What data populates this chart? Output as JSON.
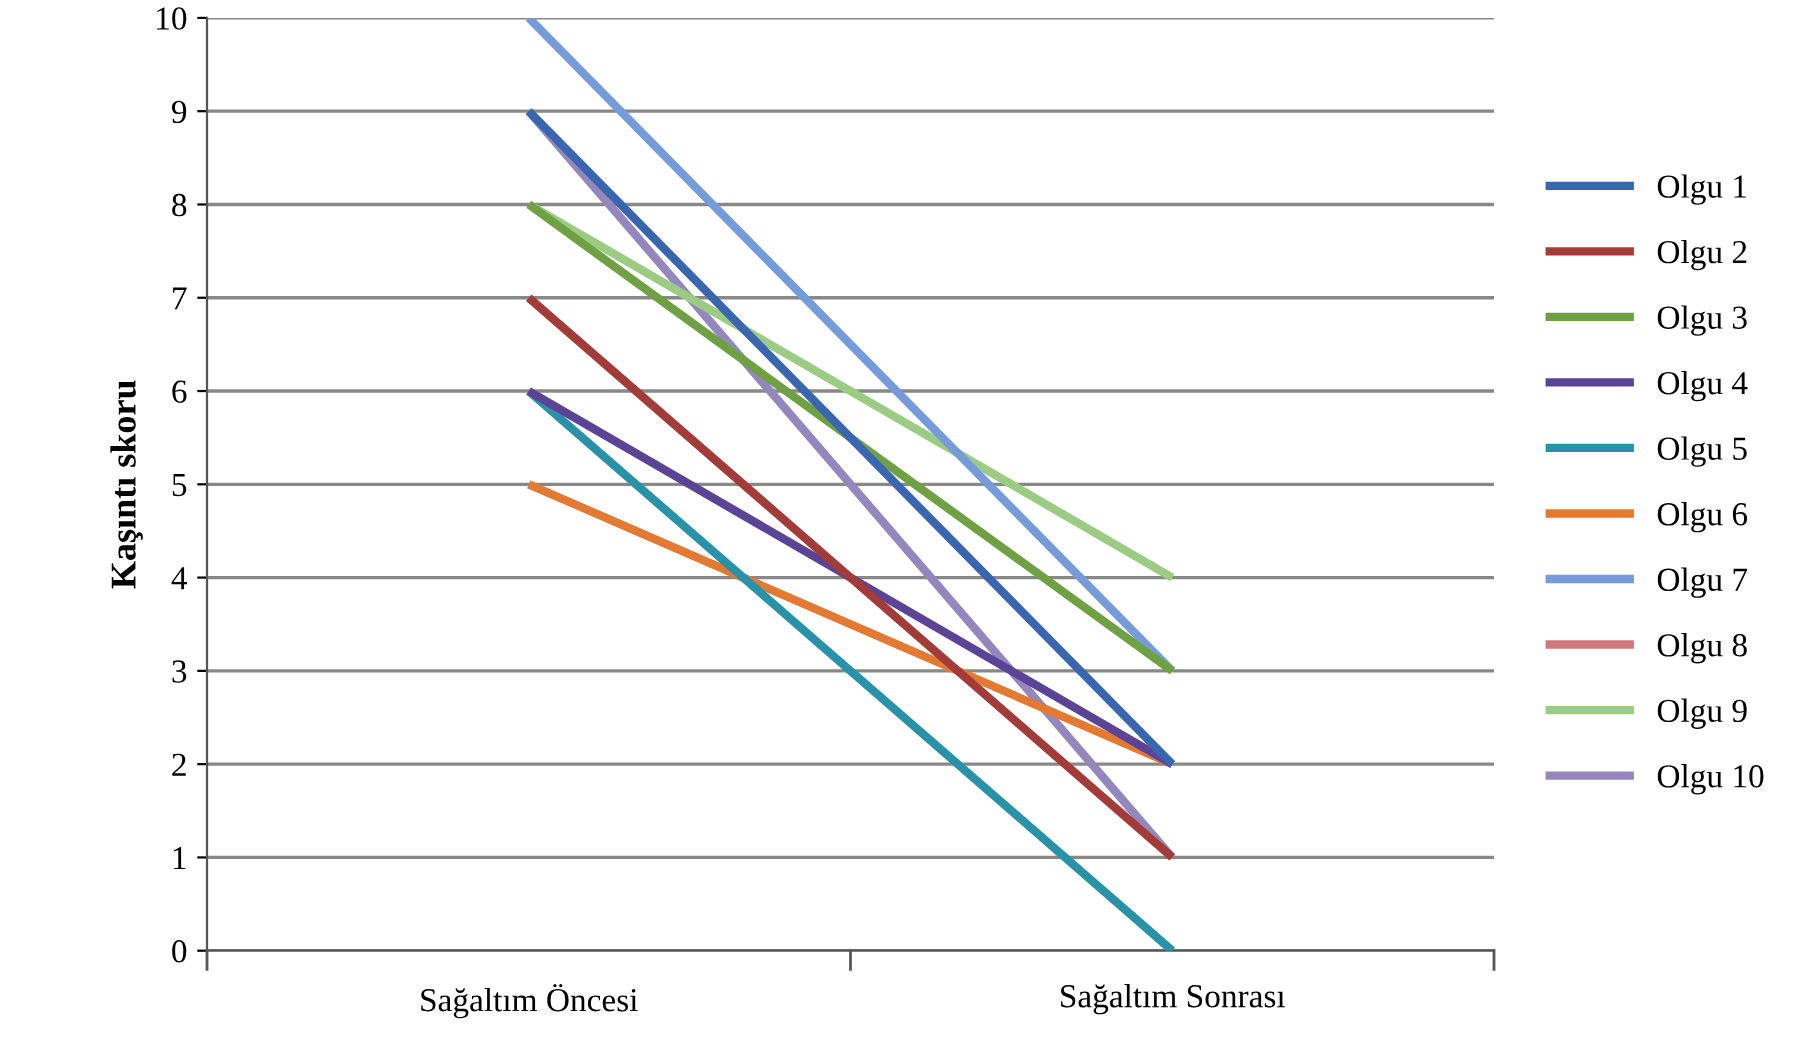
{
  "chart_data": {
    "type": "line",
    "ylabel": "Kaşıntı skoru",
    "categories": [
      "Sağaltım Öncesi",
      "Sağaltım Sonrası"
    ],
    "ylim": [
      0,
      10
    ],
    "yticks": [
      0,
      1,
      2,
      3,
      4,
      5,
      6,
      7,
      8,
      9,
      10
    ],
    "grid": "y",
    "legend": "right",
    "marker": "none",
    "line_style": "solid",
    "series": [
      {
        "name": "Olgu 1",
        "color": "#3a66b0",
        "values": [
          9,
          2
        ]
      },
      {
        "name": "Olgu 2",
        "color": "#a33b38",
        "values": [
          7,
          1
        ]
      },
      {
        "name": "Olgu 3",
        "color": "#70a044",
        "values": [
          8,
          3
        ]
      },
      {
        "name": "Olgu 4",
        "color": "#5b4496",
        "values": [
          6,
          2
        ]
      },
      {
        "name": "Olgu 5",
        "color": "#2a92a8",
        "values": [
          6,
          0
        ]
      },
      {
        "name": "Olgu 6",
        "color": "#e27a34",
        "values": [
          5,
          2
        ]
      },
      {
        "name": "Olgu 7",
        "color": "#759cd8",
        "values": [
          10,
          3
        ]
      },
      {
        "name": "Olgu 8",
        "color": "#d0797c",
        "values": [
          null,
          null
        ]
      },
      {
        "name": "Olgu 9",
        "color": "#9ccc84",
        "values": [
          8,
          4
        ]
      },
      {
        "name": "Olgu 10",
        "color": "#9487bd",
        "values": [
          9,
          1
        ]
      }
    ]
  }
}
